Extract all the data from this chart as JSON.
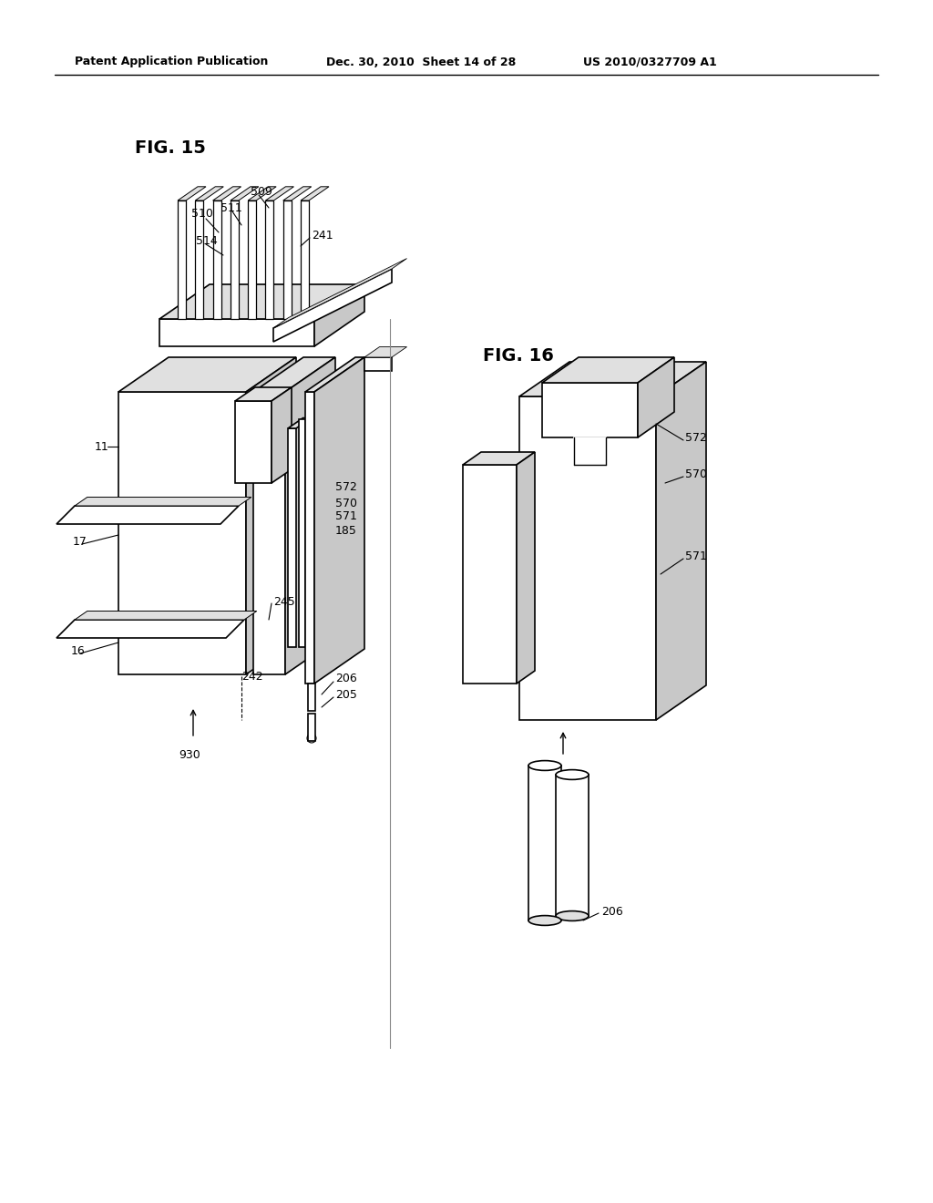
{
  "bg_color": "#ffffff",
  "header_left": "Patent Application Publication",
  "header_mid": "Dec. 30, 2010  Sheet 14 of 28",
  "header_right": "US 2010/0327709 A1",
  "fig15_label": "FIG. 15",
  "fig16_label": "FIG. 16",
  "line_color": "#000000",
  "gray_light": "#e0e0e0",
  "gray_mid": "#c8c8c8",
  "gray_dark": "#b0b0b0"
}
